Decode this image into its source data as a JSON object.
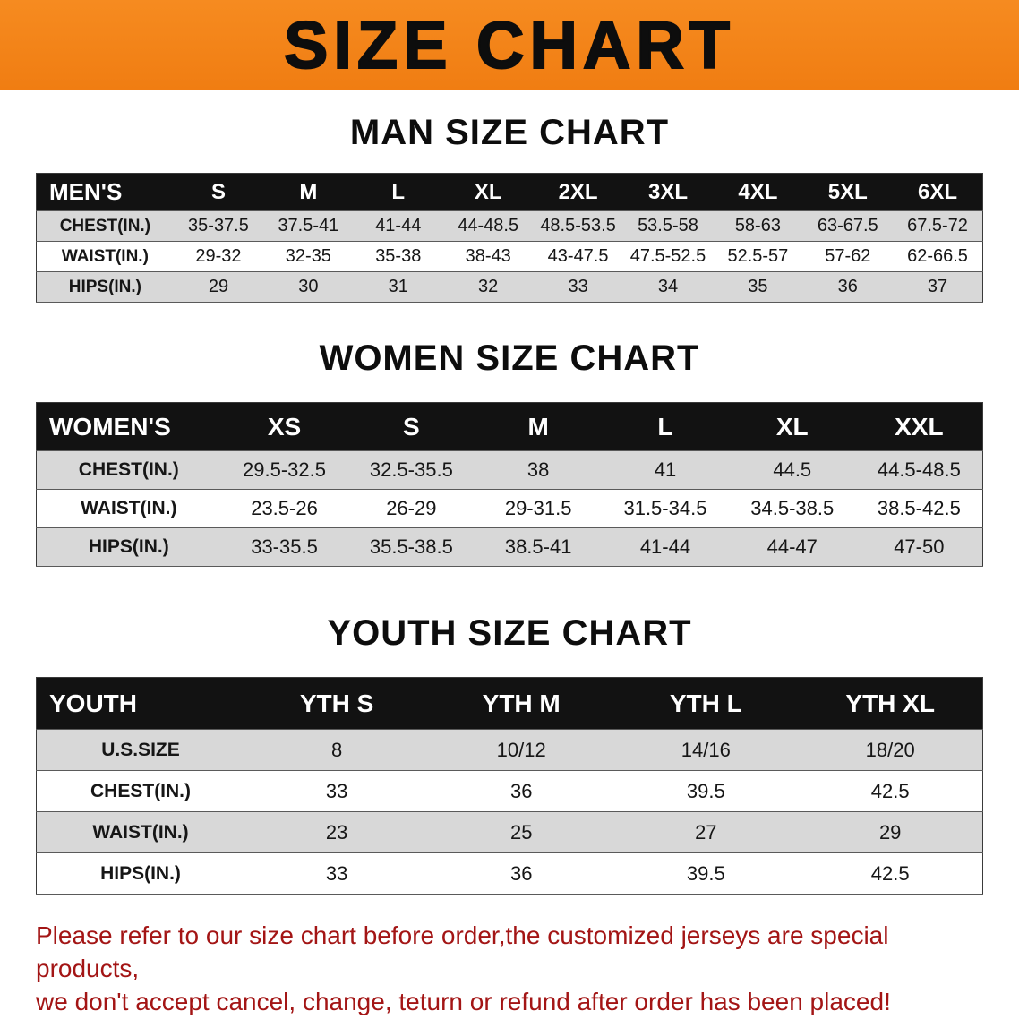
{
  "banner": {
    "title": "SIZE CHART",
    "bg_color": "#f5821e",
    "text_color": "#0d0d0d"
  },
  "colors": {
    "table_header_bg": "#121212",
    "table_header_text": "#ffffff",
    "zebra_row": "#d8d8d8",
    "notice_text": "#a31515"
  },
  "sections": [
    {
      "title": "MAN SIZE CHART",
      "table": {
        "header": [
          "MEN'S",
          "S",
          "M",
          "L",
          "XL",
          "2XL",
          "3XL",
          "4XL",
          "5XL",
          "6XL"
        ],
        "rows": [
          {
            "label": "CHEST(IN.)",
            "values": [
              "35-37.5",
              "37.5-41",
              "41-44",
              "44-48.5",
              "48.5-53.5",
              "53.5-58",
              "58-63",
              "63-67.5",
              "67.5-72"
            ]
          },
          {
            "label": "WAIST(IN.)",
            "values": [
              "29-32",
              "32-35",
              "35-38",
              "38-43",
              "43-47.5",
              "47.5-52.5",
              "52.5-57",
              "57-62",
              "62-66.5"
            ]
          },
          {
            "label": "HIPS(IN.)",
            "values": [
              "29",
              "30",
              "31",
              "32",
              "33",
              "34",
              "35",
              "36",
              "37"
            ]
          }
        ]
      }
    },
    {
      "title": "WOMEN SIZE CHART",
      "table": {
        "header": [
          "WOMEN'S",
          "XS",
          "S",
          "M",
          "L",
          "XL",
          "XXL"
        ],
        "rows": [
          {
            "label": "CHEST(IN.)",
            "values": [
              "29.5-32.5",
              "32.5-35.5",
              "38",
              "41",
              "44.5",
              "44.5-48.5"
            ]
          },
          {
            "label": "WAIST(IN.)",
            "values": [
              "23.5-26",
              "26-29",
              "29-31.5",
              "31.5-34.5",
              "34.5-38.5",
              "38.5-42.5"
            ]
          },
          {
            "label": "HIPS(IN.)",
            "values": [
              "33-35.5",
              "35.5-38.5",
              "38.5-41",
              "41-44",
              "44-47",
              "47-50"
            ]
          }
        ]
      }
    },
    {
      "title": "YOUTH SIZE CHART",
      "table": {
        "header": [
          "YOUTH",
          "YTH S",
          "YTH M",
          "YTH L",
          "YTH XL"
        ],
        "rows": [
          {
            "label": "U.S.SIZE",
            "values": [
              "8",
              "10/12",
              "14/16",
              "18/20"
            ]
          },
          {
            "label": "CHEST(IN.)",
            "values": [
              "33",
              "36",
              "39.5",
              "42.5"
            ]
          },
          {
            "label": "WAIST(IN.)",
            "values": [
              "23",
              "25",
              "27",
              "29"
            ]
          },
          {
            "label": "HIPS(IN.)",
            "values": [
              "33",
              "36",
              "39.5",
              "42.5"
            ]
          }
        ]
      }
    }
  ],
  "footer": {
    "line1": "Please refer to our size chart before order,the customized jerseys are special products,",
    "line2": "we don't accept cancel, change, teturn or refund after order has been placed!"
  }
}
